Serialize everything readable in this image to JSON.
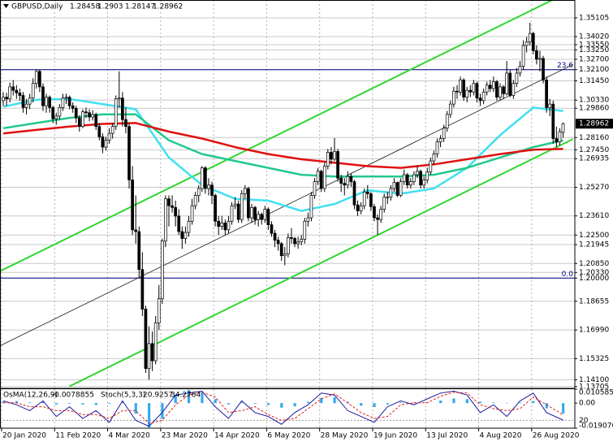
{
  "chart_data": {
    "type": "candlestick",
    "title": "GBPUSD,Daily",
    "ylim": [
      1.136,
      1.36
    ],
    "yticks": [
      1.35105,
      {
        "value": 1.3402,
        "label": "1.34020"
      },
      {
        "value": 1.3355,
        "label": "1.33550"
      },
      {
        "value": 1.3325,
        "label": "1.33250"
      },
      {
        "value": 1.327,
        "label": "1.32700"
      },
      {
        "value": 1.321,
        "label": "1.32100"
      },
      {
        "value": 1.3145,
        "label": "1.31450"
      },
      {
        "value": 1.3033,
        "label": "1.30330"
      },
      {
        "value": 1.2986,
        "label": "1.29860"
      },
      {
        "value": 1.2816,
        "label": "1.28160"
      },
      {
        "value": 1.2745,
        "label": "1.27450"
      },
      1.26935,
      {
        "value": 1.2527,
        "label": "1.25270"
      },
      {
        "value": 1.2361,
        "label": "1.23610"
      },
      {
        "value": 1.225,
        "label": "1.22500"
      },
      1.21945,
      {
        "value": 1.2085,
        "label": "1.20850"
      },
      {
        "value": 1.2033,
        "label": "1.20330"
      },
      {
        "value": 1.2,
        "label": "1.20000"
      },
      1.18655,
      {
        "value": 1.1699,
        "label": "1.16990"
      },
      1.15325,
      {
        "value": 1.141,
        "label": "1.14100"
      },
      1.13705
    ],
    "xtick_labels": [
      "20 Jan 2020",
      "11 Feb 2020",
      "4 Mar 2020",
      "23 Mar 2020",
      "14 Apr 2020",
      "6 May 2020",
      "28 May 2020",
      "19 Jun 2020",
      "13 Jul 2020",
      "4 Aug 2020",
      "26 Aug 2020"
    ],
    "grid": true,
    "candles": [
      [
        1.303,
        1.308,
        1.3,
        1.305
      ],
      [
        1.305,
        1.3075,
        1.3,
        1.304
      ],
      [
        1.304,
        1.3135,
        1.302,
        1.311
      ],
      [
        1.311,
        1.315,
        1.306,
        1.309
      ],
      [
        1.309,
        1.312,
        1.304,
        1.3075
      ],
      [
        1.3075,
        1.31,
        1.303,
        1.306
      ],
      [
        1.306,
        1.308,
        1.296,
        1.299
      ],
      [
        1.299,
        1.304,
        1.295,
        1.301
      ],
      [
        1.301,
        1.307,
        1.298,
        1.3045
      ],
      [
        1.3045,
        1.316,
        1.302,
        1.313
      ],
      [
        1.313,
        1.321,
        1.31,
        1.32
      ],
      [
        1.32,
        1.321,
        1.308,
        1.311
      ],
      [
        1.311,
        1.313,
        1.297,
        1.3
      ],
      [
        1.3,
        1.307,
        1.296,
        1.305
      ],
      [
        1.305,
        1.306,
        1.296,
        1.299
      ],
      [
        1.299,
        1.3,
        1.29,
        1.2925
      ],
      [
        1.2925,
        1.296,
        1.289,
        1.294
      ],
      [
        1.294,
        1.301,
        1.292,
        1.299
      ],
      [
        1.299,
        1.307,
        1.297,
        1.3045
      ],
      [
        1.3045,
        1.307,
        1.301,
        1.305
      ],
      [
        1.305,
        1.306,
        1.298,
        1.3
      ],
      [
        1.3,
        1.302,
        1.296,
        1.2985
      ],
      [
        1.2985,
        1.3,
        1.29,
        1.293
      ],
      [
        1.293,
        1.2945,
        1.285,
        1.288
      ],
      [
        1.288,
        1.298,
        1.287,
        1.2965
      ],
      [
        1.2965,
        1.299,
        1.293,
        1.296
      ],
      [
        1.296,
        1.298,
        1.291,
        1.2935
      ],
      [
        1.2935,
        1.2975,
        1.2915,
        1.295
      ],
      [
        1.295,
        1.296,
        1.286,
        1.288
      ],
      [
        1.288,
        1.29,
        1.28,
        1.282
      ],
      [
        1.282,
        1.284,
        1.2725,
        1.276
      ],
      [
        1.276,
        1.282,
        1.274,
        1.28
      ],
      [
        1.28,
        1.287,
        1.278,
        1.284
      ],
      [
        1.284,
        1.29,
        1.281,
        1.288
      ],
      [
        1.288,
        1.306,
        1.286,
        1.304
      ],
      [
        1.304,
        1.32,
        1.299,
        1.3045
      ],
      [
        1.3045,
        1.308,
        1.288,
        1.292
      ],
      [
        1.292,
        1.299,
        1.284,
        1.288
      ],
      [
        1.288,
        1.29,
        1.252,
        1.257
      ],
      [
        1.257,
        1.265,
        1.225,
        1.228
      ],
      [
        1.228,
        1.248,
        1.22,
        1.227
      ],
      [
        1.227,
        1.23,
        1.2,
        1.205
      ],
      [
        1.205,
        1.215,
        1.178,
        1.182
      ],
      [
        1.182,
        1.184,
        1.145,
        1.1475
      ],
      [
        1.1475,
        1.172,
        1.141,
        1.162
      ],
      [
        1.162,
        1.169,
        1.146,
        1.152
      ],
      [
        1.152,
        1.178,
        1.15,
        1.174
      ],
      [
        1.174,
        1.196,
        1.17,
        1.188
      ],
      [
        1.188,
        1.223,
        1.185,
        1.2215
      ],
      [
        1.2215,
        1.248,
        1.218,
        1.246
      ],
      [
        1.246,
        1.248,
        1.23,
        1.242
      ],
      [
        1.242,
        1.248,
        1.238,
        1.241
      ],
      [
        1.241,
        1.245,
        1.23,
        1.236
      ],
      [
        1.236,
        1.24,
        1.225,
        1.227
      ],
      [
        1.227,
        1.23,
        1.217,
        1.223
      ],
      [
        1.223,
        1.23,
        1.22,
        1.2265
      ],
      [
        1.2265,
        1.236,
        1.224,
        1.233
      ],
      [
        1.233,
        1.246,
        1.231,
        1.242
      ],
      [
        1.242,
        1.25,
        1.24,
        1.248
      ],
      [
        1.248,
        1.254,
        1.244,
        1.252
      ],
      [
        1.252,
        1.265,
        1.25,
        1.264
      ],
      [
        1.264,
        1.265,
        1.249,
        1.252
      ],
      [
        1.252,
        1.258,
        1.248,
        1.254
      ],
      [
        1.254,
        1.256,
        1.243,
        1.248
      ],
      [
        1.248,
        1.249,
        1.23,
        1.233
      ],
      [
        1.233,
        1.236,
        1.225,
        1.23
      ],
      [
        1.23,
        1.236,
        1.228,
        1.232
      ],
      [
        1.232,
        1.234,
        1.225,
        1.228
      ],
      [
        1.228,
        1.236,
        1.226,
        1.233
      ],
      [
        1.233,
        1.244,
        1.231,
        1.242
      ],
      [
        1.242,
        1.247,
        1.24,
        1.243
      ],
      [
        1.243,
        1.245,
        1.232,
        1.234
      ],
      [
        1.234,
        1.251,
        1.232,
        1.249
      ],
      [
        1.249,
        1.254,
        1.246,
        1.252
      ],
      [
        1.252,
        1.253,
        1.233,
        1.235
      ],
      [
        1.235,
        1.243,
        1.232,
        1.241
      ],
      [
        1.241,
        1.242,
        1.231,
        1.234
      ],
      [
        1.234,
        1.239,
        1.23,
        1.237
      ],
      [
        1.237,
        1.238,
        1.231,
        1.234
      ],
      [
        1.234,
        1.242,
        1.232,
        1.24
      ],
      [
        1.24,
        1.241,
        1.228,
        1.231
      ],
      [
        1.231,
        1.233,
        1.224,
        1.226
      ],
      [
        1.226,
        1.228,
        1.218,
        1.222
      ],
      [
        1.222,
        1.224,
        1.216,
        1.22
      ],
      [
        1.22,
        1.221,
        1.21,
        1.213
      ],
      [
        1.213,
        1.218,
        1.2075,
        1.214
      ],
      [
        1.214,
        1.226,
        1.212,
        1.2235
      ],
      [
        1.2235,
        1.229,
        1.22,
        1.223
      ],
      [
        1.223,
        1.224,
        1.218,
        1.22
      ],
      [
        1.22,
        1.224,
        1.217,
        1.221
      ],
      [
        1.221,
        1.225,
        1.219,
        1.2225
      ],
      [
        1.2225,
        1.235,
        1.22,
        1.233
      ],
      [
        1.233,
        1.238,
        1.23,
        1.235
      ],
      [
        1.235,
        1.25,
        1.233,
        1.248
      ],
      [
        1.248,
        1.258,
        1.246,
        1.256
      ],
      [
        1.256,
        1.264,
        1.254,
        1.262
      ],
      [
        1.262,
        1.263,
        1.25,
        1.252
      ],
      [
        1.252,
        1.267,
        1.25,
        1.265
      ],
      [
        1.265,
        1.275,
        1.263,
        1.273
      ],
      [
        1.273,
        1.276,
        1.266,
        1.269
      ],
      [
        1.269,
        1.2813,
        1.268,
        1.2735
      ],
      [
        1.2735,
        1.275,
        1.256,
        1.258
      ],
      [
        1.258,
        1.26,
        1.25,
        1.255
      ],
      [
        1.255,
        1.258,
        1.248,
        1.254
      ],
      [
        1.254,
        1.262,
        1.252,
        1.259
      ],
      [
        1.259,
        1.261,
        1.253,
        1.256
      ],
      [
        1.256,
        1.257,
        1.24,
        1.2425
      ],
      [
        1.2425,
        1.245,
        1.236,
        1.239
      ],
      [
        1.239,
        1.244,
        1.237,
        1.242
      ],
      [
        1.242,
        1.252,
        1.24,
        1.25
      ],
      [
        1.25,
        1.254,
        1.246,
        1.249
      ],
      [
        1.249,
        1.25,
        1.239,
        1.2415
      ],
      [
        1.2415,
        1.243,
        1.233,
        1.235
      ],
      [
        1.235,
        1.237,
        1.225,
        1.234
      ],
      [
        1.234,
        1.242,
        1.232,
        1.24
      ],
      [
        1.24,
        1.249,
        1.238,
        1.247
      ],
      [
        1.247,
        1.25,
        1.243,
        1.247
      ],
      [
        1.247,
        1.254,
        1.245,
        1.252
      ],
      [
        1.252,
        1.258,
        1.25,
        1.2555
      ],
      [
        1.2555,
        1.256,
        1.247,
        1.248
      ],
      [
        1.248,
        1.258,
        1.247,
        1.256
      ],
      [
        1.256,
        1.263,
        1.254,
        1.26
      ],
      [
        1.26,
        1.261,
        1.252,
        1.254
      ],
      [
        1.254,
        1.258,
        1.252,
        1.256
      ],
      [
        1.256,
        1.262,
        1.254,
        1.26
      ],
      [
        1.26,
        1.265,
        1.258,
        1.262
      ],
      [
        1.262,
        1.263,
        1.252,
        1.254
      ],
      [
        1.254,
        1.259,
        1.252,
        1.257
      ],
      [
        1.257,
        1.264,
        1.255,
        1.2615
      ],
      [
        1.2615,
        1.27,
        1.26,
        1.268
      ],
      [
        1.268,
        1.274,
        1.266,
        1.272
      ],
      [
        1.272,
        1.281,
        1.27,
        1.279
      ],
      [
        1.279,
        1.283,
        1.276,
        1.281
      ],
      [
        1.281,
        1.289,
        1.279,
        1.287
      ],
      [
        1.287,
        1.297,
        1.285,
        1.295
      ],
      [
        1.295,
        1.303,
        1.293,
        1.301
      ],
      [
        1.301,
        1.311,
        1.299,
        1.3085
      ],
      [
        1.3085,
        1.312,
        1.304,
        1.308
      ],
      [
        1.308,
        1.317,
        1.306,
        1.315
      ],
      [
        1.315,
        1.316,
        1.303,
        1.305
      ],
      [
        1.305,
        1.311,
        1.302,
        1.309
      ],
      [
        1.309,
        1.312,
        1.305,
        1.308
      ],
      [
        1.308,
        1.315,
        1.306,
        1.313
      ],
      [
        1.313,
        1.314,
        1.302,
        1.3045
      ],
      [
        1.3045,
        1.307,
        1.3,
        1.303
      ],
      [
        1.303,
        1.31,
        1.301,
        1.308
      ],
      [
        1.308,
        1.314,
        1.306,
        1.312
      ],
      [
        1.312,
        1.315,
        1.308,
        1.31
      ],
      [
        1.31,
        1.317,
        1.308,
        1.314
      ],
      [
        1.314,
        1.315,
        1.303,
        1.305
      ],
      [
        1.305,
        1.313,
        1.303,
        1.311
      ],
      [
        1.311,
        1.312,
        1.304,
        1.307
      ],
      [
        1.307,
        1.326,
        1.306,
        1.319
      ],
      [
        1.319,
        1.321,
        1.305,
        1.306
      ],
      [
        1.306,
        1.315,
        1.304,
        1.313
      ],
      [
        1.313,
        1.322,
        1.311,
        1.319
      ],
      [
        1.319,
        1.326,
        1.317,
        1.323
      ],
      [
        1.323,
        1.338,
        1.321,
        1.335
      ],
      [
        1.335,
        1.34,
        1.331,
        1.337
      ],
      [
        1.337,
        1.3482,
        1.335,
        1.342
      ],
      [
        1.342,
        1.343,
        1.33,
        1.332
      ],
      [
        1.332,
        1.335,
        1.324,
        1.327
      ],
      [
        1.327,
        1.332,
        1.32,
        1.3275
      ],
      [
        1.3275,
        1.329,
        1.313,
        1.315
      ],
      [
        1.315,
        1.317,
        1.296,
        1.299
      ],
      [
        1.299,
        1.304,
        1.294,
        1.301
      ],
      [
        1.301,
        1.303,
        1.278,
        1.281
      ],
      [
        1.281,
        1.288,
        1.276,
        1.279
      ],
      [
        1.279,
        1.287,
        1.277,
        1.285
      ],
      [
        1.28458,
        1.2903,
        1.28147,
        1.28962
      ]
    ],
    "ma_x": [
      0,
      10,
      20,
      30,
      40,
      50,
      60,
      70,
      80,
      90,
      100,
      110,
      120,
      130,
      140,
      150,
      160,
      169
    ],
    "moving_averages": [
      {
        "color": "#3ee0f0",
        "values": [
          1.2995,
          1.3035,
          1.304,
          1.301,
          1.298,
          1.27,
          1.254,
          1.246,
          1.245,
          1.239,
          1.243,
          1.251,
          1.249,
          1.252,
          1.264,
          1.283,
          1.299,
          1.297
        ]
      },
      {
        "color": "#22c98a",
        "values": [
          1.287,
          1.29,
          1.293,
          1.295,
          1.295,
          1.28,
          1.272,
          1.268,
          1.264,
          1.26,
          1.259,
          1.259,
          1.259,
          1.26,
          1.264,
          1.27,
          1.276,
          1.28
        ]
      },
      {
        "color": "#e01010",
        "values": [
          1.284,
          1.286,
          1.288,
          1.2895,
          1.29,
          1.285,
          1.281,
          1.276,
          1.272,
          1.269,
          1.267,
          1.265,
          1.264,
          1.266,
          1.269,
          1.272,
          1.2745,
          1.275
        ]
      }
    ],
    "trendlines": [
      {
        "color": "#33d633",
        "points": [
          [
            -1,
            1.204
          ],
          [
            172,
            1.3673
          ]
        ]
      },
      {
        "color": "#33d633",
        "points": [
          [
            20,
            1.1372
          ],
          [
            172,
            1.2807
          ]
        ]
      },
      {
        "color": "#1a1a1a",
        "points": [
          [
            -1,
            1.1607
          ],
          [
            172,
            1.324
          ]
        ]
      }
    ],
    "levels": [
      {
        "label": "23.6",
        "value": 1.321,
        "color": "#000080"
      },
      {
        "label": "0.0",
        "value": 1.2,
        "color": "#000080"
      }
    ],
    "oscillator": {
      "osma_name": "OsMA(12,26,9)",
      "stoch_name": "Stoch(5,3,3)",
      "x": [
        0,
        4,
        8,
        12,
        16,
        20,
        24,
        28,
        32,
        36,
        40,
        44,
        48,
        52,
        56,
        60,
        64,
        68,
        72,
        76,
        80,
        84,
        88,
        92,
        96,
        100,
        104,
        108,
        112,
        116,
        120,
        124,
        128,
        132,
        136,
        140,
        144,
        148,
        152,
        156,
        160,
        164,
        169
      ],
      "osma": [
        0.001,
        0.0015,
        0.0005,
        0.001,
        -0.001,
        -0.0005,
        -0.001,
        -0.0015,
        -0.0005,
        0.001,
        -0.008,
        -0.0185,
        -0.012,
        0.006,
        0.01,
        0.0085,
        0.003,
        -0.001,
        0.0005,
        -0.0005,
        -0.0015,
        -0.0035,
        -0.0025,
        0.001,
        0.004,
        0.0045,
        0.001,
        -0.002,
        -0.003,
        -0.001,
        0.0005,
        0.0005,
        0.0005,
        0.002,
        0.0035,
        0.003,
        0.001,
        0.0005,
        0.0002,
        0.0005,
        0.0015,
        -0.004,
        -0.0078855
      ],
      "osma_color": "#33aaf0",
      "osma_ylim": [
        -0.019076,
        0.010585
      ],
      "osma_ticks": [
        0.010585,
        {
          "value": 0,
          "label": "0.00"
        },
        -0.019076
      ],
      "stoch_main": [
        70,
        60,
        45,
        70,
        30,
        55,
        25,
        45,
        15,
        70,
        20,
        5,
        40,
        85,
        90,
        95,
        55,
        25,
        70,
        40,
        30,
        10,
        40,
        60,
        90,
        85,
        45,
        30,
        15,
        55,
        70,
        60,
        75,
        90,
        95,
        85,
        40,
        60,
        30,
        70,
        90,
        40,
        20.9257
      ],
      "stoch_signal": [
        65,
        65,
        55,
        55,
        45,
        45,
        35,
        35,
        25,
        45,
        45,
        12,
        20,
        60,
        85,
        92,
        80,
        40,
        45,
        55,
        35,
        20,
        25,
        50,
        75,
        88,
        65,
        40,
        25,
        30,
        60,
        65,
        65,
        82,
        92,
        90,
        60,
        50,
        45,
        50,
        80,
        60,
        34.2764
      ],
      "stoch_main_color": "#1a1aa0",
      "stoch_signal_color": "#e02020",
      "stoch_ylim": [
        0,
        100
      ],
      "stoch_ticks": [
        20
      ]
    }
  }
}
